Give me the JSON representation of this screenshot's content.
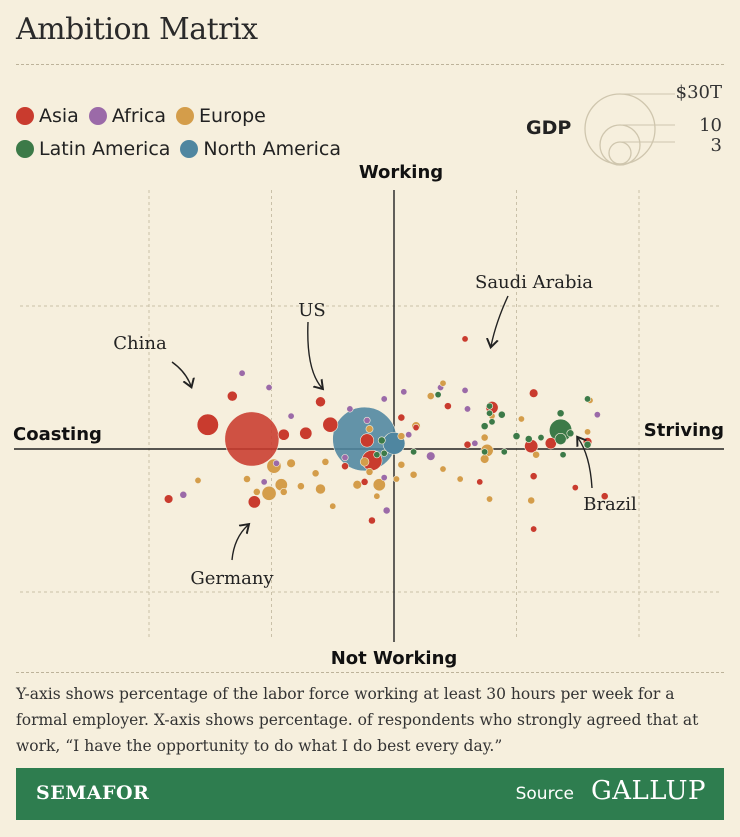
{
  "title": "Ambition Matrix",
  "legend": [
    {
      "label": "Asia",
      "color": "#c93b2e"
    },
    {
      "label": "Africa",
      "color": "#9b6aa8"
    },
    {
      "label": "Europe",
      "color": "#d49d4a"
    },
    {
      "label": "Latin America",
      "color": "#3c7a48"
    },
    {
      "label": "North America",
      "color": "#4f86a0"
    }
  ],
  "gdp_legend": {
    "label": "GDP",
    "values": [
      "$30T",
      "10",
      "3"
    ]
  },
  "footnote": "Y-axis shows percentage of the labor force working at least 30 hours per week for a formal employer. X-axis shows percentage. of respondents who strongly agreed that at work, “I have the opportunity to do what I do best every day.”",
  "footer": {
    "brand": "SEMAFOR",
    "source_label": "Source",
    "source_name": "GALLUP"
  },
  "chart_data": {
    "type": "scatter",
    "title": "Ambition Matrix",
    "axis_labels": {
      "top": "Working",
      "bottom": "Not Working",
      "left": "Coasting",
      "right": "Striving"
    },
    "x_range": [
      -10,
      10
    ],
    "y_range": [
      -10,
      10
    ],
    "grid": true,
    "annotations": [
      {
        "text": "China",
        "x": -6.6,
        "y": 2.0
      },
      {
        "text": "US",
        "x": -2.8,
        "y": 3.9
      },
      {
        "text": "Saudi Arabia",
        "x": 4.6,
        "y": 4.7
      },
      {
        "text": "Brazil",
        "x": 6.0,
        "y": -1.9
      },
      {
        "text": "Germany",
        "x": -4.8,
        "y": -4.2
      }
    ],
    "series": [
      {
        "name": "Asia",
        "color": "#c93b2e",
        "points": [
          {
            "x": -5.8,
            "y": 0.7,
            "gdp": 18
          },
          {
            "x": -7.6,
            "y": 1.7,
            "gdp": 1.8
          },
          {
            "x": -2.6,
            "y": 1.7,
            "gdp": 0.9
          },
          {
            "x": -3.6,
            "y": 1.1,
            "gdp": 0.6
          },
          {
            "x": -0.9,
            "y": -0.8,
            "gdp": 1.6
          },
          {
            "x": -1.1,
            "y": 0.6,
            "gdp": 0.7
          },
          {
            "x": -3.0,
            "y": 3.3,
            "gdp": 0.4
          },
          {
            "x": 6.4,
            "y": 0.4,
            "gdp": 0.5
          },
          {
            "x": 5.7,
            "y": 3.9,
            "gdp": 0.3
          },
          {
            "x": -6.6,
            "y": 3.7,
            "gdp": 0.4
          },
          {
            "x": -9.2,
            "y": -3.5,
            "gdp": 0.3
          },
          {
            "x": -5.7,
            "y": -3.7,
            "gdp": 0.6
          },
          {
            "x": 4.0,
            "y": 2.9,
            "gdp": 0.6
          },
          {
            "x": 5.6,
            "y": 0.2,
            "gdp": 0.7
          },
          {
            "x": 7.9,
            "y": 0.5,
            "gdp": 0.3
          },
          {
            "x": 2.2,
            "y": 3.0,
            "gdp": 0.2
          },
          {
            "x": 3.0,
            "y": 0.3,
            "gdp": 0.2
          },
          {
            "x": 5.7,
            "y": -1.9,
            "gdp": 0.2
          },
          {
            "x": -4.5,
            "y": 1.0,
            "gdp": 0.5
          },
          {
            "x": 0.3,
            "y": 2.2,
            "gdp": 0.2
          },
          {
            "x": 2.9,
            "y": 7.7,
            "gdp": 0.1
          },
          {
            "x": -2.0,
            "y": -1.2,
            "gdp": 0.2
          },
          {
            "x": -1.2,
            "y": -2.3,
            "gdp": 0.2
          },
          {
            "x": 0.9,
            "y": 1.5,
            "gdp": 0.1
          },
          {
            "x": -0.9,
            "y": -5.0,
            "gdp": 0.2
          },
          {
            "x": 5.7,
            "y": -5.6,
            "gdp": 0.1
          },
          {
            "x": 8.6,
            "y": -3.3,
            "gdp": 0.2
          },
          {
            "x": 7.4,
            "y": -2.7,
            "gdp": 0.1
          },
          {
            "x": 3.5,
            "y": -2.3,
            "gdp": 0.1
          }
        ]
      },
      {
        "name": "Africa",
        "color": "#9b6aa8",
        "points": [
          {
            "x": -6.2,
            "y": 5.3,
            "gdp": 0.1
          },
          {
            "x": -5.1,
            "y": 4.3,
            "gdp": 0.1
          },
          {
            "x": -4.2,
            "y": 2.3,
            "gdp": 0.1
          },
          {
            "x": -1.8,
            "y": 2.8,
            "gdp": 0.1
          },
          {
            "x": -4.8,
            "y": -1.0,
            "gdp": 0.1
          },
          {
            "x": -5.3,
            "y": -2.3,
            "gdp": 0.1
          },
          {
            "x": -8.6,
            "y": -3.2,
            "gdp": 0.2
          },
          {
            "x": -0.4,
            "y": -2.0,
            "gdp": 0.1
          },
          {
            "x": 0.4,
            "y": 4.0,
            "gdp": 0.1
          },
          {
            "x": 1.9,
            "y": 4.3,
            "gdp": 0.1
          },
          {
            "x": 2.9,
            "y": 4.1,
            "gdp": 0.1
          },
          {
            "x": 3.0,
            "y": 2.8,
            "gdp": 0.1
          },
          {
            "x": -0.4,
            "y": 3.5,
            "gdp": 0.1
          },
          {
            "x": -0.3,
            "y": -4.3,
            "gdp": 0.2
          },
          {
            "x": 1.5,
            "y": -0.5,
            "gdp": 0.3
          },
          {
            "x": 3.3,
            "y": 0.4,
            "gdp": 0.1
          },
          {
            "x": -1.1,
            "y": 2.0,
            "gdp": 0.1
          },
          {
            "x": 8.3,
            "y": 2.4,
            "gdp": 0.1
          },
          {
            "x": -2.0,
            "y": -0.6,
            "gdp": 0.1
          },
          {
            "x": 0.6,
            "y": 1.0,
            "gdp": 0.1
          }
        ]
      },
      {
        "name": "Europe",
        "color": "#d49d4a",
        "points": [
          {
            "x": -4.9,
            "y": -1.2,
            "gdp": 0.8
          },
          {
            "x": -4.2,
            "y": -1.0,
            "gdp": 0.3
          },
          {
            "x": -3.0,
            "y": -2.8,
            "gdp": 0.4
          },
          {
            "x": -6.0,
            "y": -2.1,
            "gdp": 0.2
          },
          {
            "x": -2.8,
            "y": -0.9,
            "gdp": 0.2
          },
          {
            "x": -3.8,
            "y": -2.6,
            "gdp": 0.2
          },
          {
            "x": -2.5,
            "y": -4.0,
            "gdp": 0.1
          },
          {
            "x": -3.2,
            "y": -1.7,
            "gdp": 0.2
          },
          {
            "x": -1.5,
            "y": -2.5,
            "gdp": 0.3
          },
          {
            "x": -0.6,
            "y": -2.5,
            "gdp": 0.6
          },
          {
            "x": -1.2,
            "y": -0.9,
            "gdp": 0.3
          },
          {
            "x": -0.7,
            "y": -3.3,
            "gdp": 0.1
          },
          {
            "x": 0.3,
            "y": 0.9,
            "gdp": 0.2
          },
          {
            "x": 0.3,
            "y": -1.1,
            "gdp": 0.2
          },
          {
            "x": -1.0,
            "y": -1.6,
            "gdp": 0.2
          },
          {
            "x": 0.9,
            "y": 1.6,
            "gdp": 0.3
          },
          {
            "x": 5.8,
            "y": -0.4,
            "gdp": 0.2
          },
          {
            "x": 5.6,
            "y": -3.6,
            "gdp": 0.2
          },
          {
            "x": 3.8,
            "y": -0.1,
            "gdp": 0.6
          },
          {
            "x": 2.0,
            "y": 4.6,
            "gdp": 0.1
          },
          {
            "x": 4.0,
            "y": 2.3,
            "gdp": 0.1
          },
          {
            "x": 3.7,
            "y": 0.8,
            "gdp": 0.2
          },
          {
            "x": 3.7,
            "y": -0.7,
            "gdp": 0.3
          },
          {
            "x": 0.8,
            "y": -1.8,
            "gdp": 0.2
          },
          {
            "x": -5.1,
            "y": -3.1,
            "gdp": 0.8
          },
          {
            "x": -8.0,
            "y": -2.2,
            "gdp": 0.1
          },
          {
            "x": -4.5,
            "y": -3.0,
            "gdp": 0.2
          },
          {
            "x": 1.5,
            "y": 3.7,
            "gdp": 0.2
          },
          {
            "x": 8.0,
            "y": 3.4,
            "gdp": 0.1
          },
          {
            "x": -4.6,
            "y": -2.5,
            "gdp": 0.6
          },
          {
            "x": -5.6,
            "y": -3.0,
            "gdp": 0.2
          },
          {
            "x": 2.0,
            "y": -1.4,
            "gdp": 0.1
          },
          {
            "x": 0.1,
            "y": -2.1,
            "gdp": 0.1
          },
          {
            "x": -1.0,
            "y": 1.4,
            "gdp": 0.2
          },
          {
            "x": 7.9,
            "y": 1.2,
            "gdp": 0.1
          },
          {
            "x": 2.7,
            "y": -2.1,
            "gdp": 0.1
          },
          {
            "x": 3.9,
            "y": -3.5,
            "gdp": 0.1
          },
          {
            "x": 5.2,
            "y": 2.1,
            "gdp": 0.1
          }
        ]
      },
      {
        "name": "Latin America",
        "color": "#3c7a48",
        "points": [
          {
            "x": 6.8,
            "y": 1.3,
            "gdp": 2.0
          },
          {
            "x": 6.8,
            "y": 0.7,
            "gdp": 0.5
          },
          {
            "x": 6.8,
            "y": 2.5,
            "gdp": 0.2
          },
          {
            "x": 7.2,
            "y": 1.1,
            "gdp": 0.2
          },
          {
            "x": 7.9,
            "y": 3.5,
            "gdp": 0.1
          },
          {
            "x": 7.9,
            "y": 0.3,
            "gdp": 0.2
          },
          {
            "x": 4.0,
            "y": 1.9,
            "gdp": 0.1
          },
          {
            "x": 3.9,
            "y": 2.5,
            "gdp": 0.1
          },
          {
            "x": 5.5,
            "y": 0.7,
            "gdp": 0.2
          },
          {
            "x": 5.0,
            "y": 0.9,
            "gdp": 0.2
          },
          {
            "x": 4.4,
            "y": 2.4,
            "gdp": 0.2
          },
          {
            "x": 3.9,
            "y": 3.0,
            "gdp": 0.1
          },
          {
            "x": 1.8,
            "y": 3.8,
            "gdp": 0.1
          },
          {
            "x": 6.0,
            "y": 0.8,
            "gdp": 0.1
          },
          {
            "x": 0.8,
            "y": -0.2,
            "gdp": 0.1
          },
          {
            "x": 3.7,
            "y": 1.6,
            "gdp": 0.2
          },
          {
            "x": 3.7,
            "y": -0.2,
            "gdp": 0.1
          },
          {
            "x": -0.5,
            "y": 0.6,
            "gdp": 0.2
          },
          {
            "x": -0.7,
            "y": -0.4,
            "gdp": 0.1
          },
          {
            "x": -0.4,
            "y": -0.3,
            "gdp": 0.1
          },
          {
            "x": 6.9,
            "y": -0.4,
            "gdp": 0.1
          },
          {
            "x": 4.5,
            "y": -0.2,
            "gdp": 0.1
          }
        ]
      },
      {
        "name": "North America",
        "color": "#4f86a0",
        "points": [
          {
            "x": -1.2,
            "y": 0.7,
            "gdp": 25
          },
          {
            "x": 0.0,
            "y": 0.4,
            "gdp": 1.9
          }
        ]
      }
    ]
  }
}
